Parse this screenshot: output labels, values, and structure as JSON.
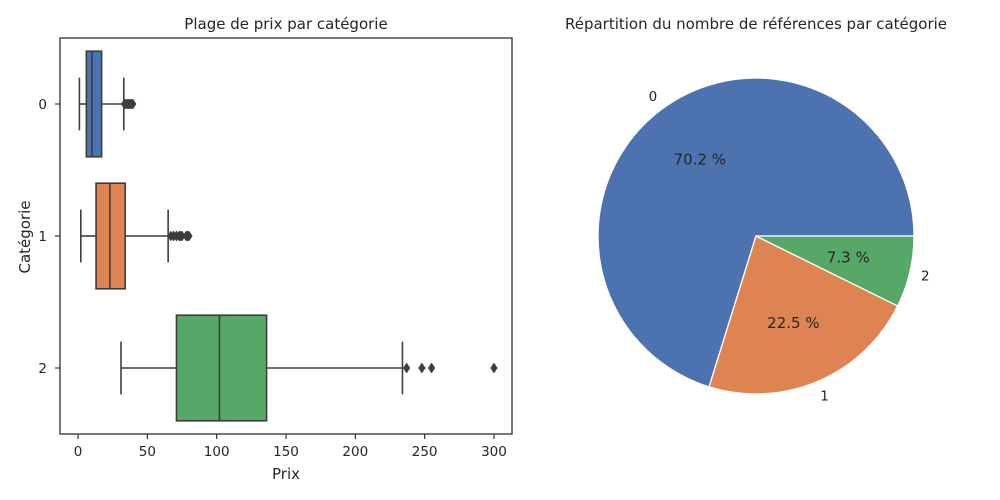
{
  "chart_data": [
    {
      "type": "boxplot",
      "orientation": "horizontal",
      "title": "Plage de prix par catégorie",
      "xlabel": "Prix",
      "ylabel": "Catégorie",
      "xlim": [
        -13,
        313
      ],
      "xticks": [
        0,
        50,
        100,
        150,
        200,
        250,
        300
      ],
      "categories": [
        "0",
        "1",
        "2"
      ],
      "series": [
        {
          "name": "0",
          "color": "#4c72b0",
          "whisker_low": 1,
          "q1": 6,
          "median": 10,
          "q3": 17,
          "whisker_high": 33,
          "outliers": [
            33.5,
            34.5,
            35.5,
            36.5,
            37.5,
            38.5,
            39.5
          ]
        },
        {
          "name": "1",
          "color": "#dd8452",
          "whisker_low": 2,
          "q1": 13,
          "median": 23,
          "q3": 34,
          "whisker_high": 65,
          "outliers": [
            67,
            69,
            71,
            73,
            74,
            75,
            78,
            79,
            80
          ]
        },
        {
          "name": "2",
          "color": "#55a868",
          "whisker_low": 31,
          "q1": 71,
          "median": 102,
          "q3": 136,
          "whisker_high": 234,
          "outliers": [
            237,
            248,
            255,
            300
          ]
        }
      ]
    },
    {
      "type": "pie",
      "title": "Répartition du nombre de références par catégorie",
      "labels": [
        "0",
        "1",
        "2"
      ],
      "values": [
        70.2,
        22.5,
        7.3
      ],
      "value_labels": [
        "70.2 %",
        "22.5 %",
        "7.3 %"
      ],
      "colors": [
        "#4c72b0",
        "#dd8452",
        "#55a868"
      ]
    }
  ]
}
